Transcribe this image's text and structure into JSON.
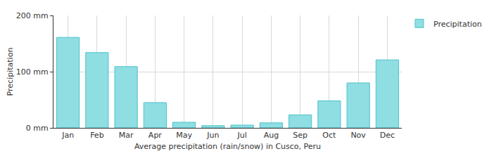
{
  "chart_data": {
    "type": "bar",
    "categories": [
      "Jan",
      "Feb",
      "Mar",
      "Apr",
      "May",
      "Jun",
      "Jul",
      "Aug",
      "Sep",
      "Oct",
      "Nov",
      "Dec"
    ],
    "series": [
      {
        "name": "Precipitation",
        "color": "#8fdee2",
        "values": [
          161,
          134,
          109,
          45,
          10,
          4,
          5,
          9,
          23,
          48,
          80,
          121
        ]
      }
    ],
    "xlabel": "Average precipitation (rain/snow) in Cusco, Peru",
    "ylabel": "Precipitation",
    "ylim": [
      0,
      200
    ],
    "yticks": [
      {
        "value": 0,
        "label": "0 mm"
      },
      {
        "value": 100,
        "label": "100 mm"
      },
      {
        "value": 200,
        "label": "200 mm"
      }
    ],
    "grid": true,
    "legend": "top right"
  }
}
